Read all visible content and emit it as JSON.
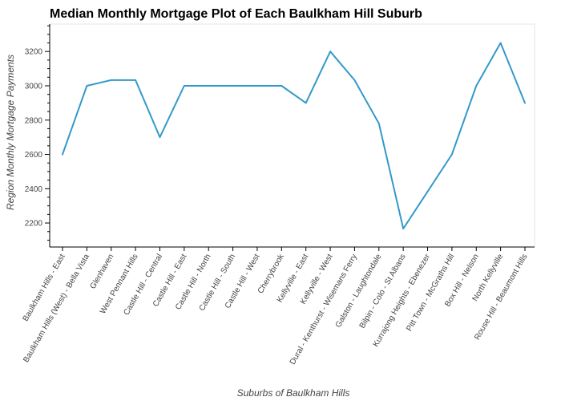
{
  "chart_data": {
    "type": "line",
    "title": "Median Monthly Mortgage Plot of Each Baulkham Hill Suburb",
    "xlabel": "Suburbs of Baulkham Hills",
    "ylabel": "Region Monthly Mortgage Payments",
    "ylim": [
      2060,
      3360
    ],
    "y_ticks": [
      2200,
      2400,
      2600,
      2800,
      3000,
      3200
    ],
    "grid": false,
    "legend": "none",
    "categories": [
      "Baulkham Hills - East",
      "Baulkham Hills (West) - Bella Vista",
      "Glenhaven",
      "West Pennant Hills",
      "Castle Hill - Central",
      "Castle Hill - East",
      "Castle Hill - North",
      "Castle Hill - South",
      "Castle Hill - West",
      "Cherrybrook",
      "Kellyville - East",
      "Kellyville - West",
      "Dural - Kenthurst - Wisemans Ferry",
      "Galston - Laughtondale",
      "Bilpin - Colo - St Albans",
      "Kurrajong Heights - Ebenezer",
      "Pitt Town - McGraths Hill",
      "Box Hill - Nelson",
      "North Kellyville",
      "Rouse Hill - Beaumont Hills"
    ],
    "series": [
      {
        "color": "#3399cc",
        "values": [
          2600,
          3000,
          3033,
          3033,
          2700,
          3000,
          3000,
          3000,
          3000,
          3000,
          2900,
          3200,
          3033,
          2780,
          2167,
          2383,
          2600,
          3000,
          3250,
          2900
        ]
      }
    ]
  }
}
